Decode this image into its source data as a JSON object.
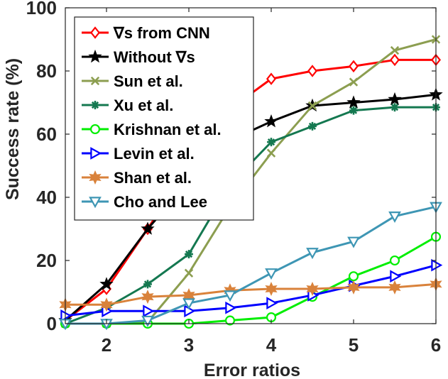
{
  "chart_data": {
    "type": "line",
    "xlabel": "Error ratios",
    "ylabel": "Success rate (%)",
    "xlim": [
      1.5,
      6
    ],
    "ylim": [
      0,
      100
    ],
    "xticks": [
      2,
      3,
      4,
      5,
      6
    ],
    "yticks": [
      0,
      20,
      40,
      60,
      80,
      100
    ],
    "grid": false,
    "legend_position": "top-left",
    "x": [
      1.5,
      2,
      2.5,
      3,
      3.5,
      4,
      4.5,
      5,
      5.5,
      6
    ],
    "series": [
      {
        "name": "∇s from CNN",
        "color": "#ff0000",
        "marker": "diamond",
        "values": [
          1,
          11,
          30,
          50,
          68,
          77.5,
          80,
          81.5,
          83.5,
          83.5
        ]
      },
      {
        "name": "Without ∇s",
        "color": "#000000",
        "marker": "star",
        "values": [
          1,
          12.5,
          30,
          45,
          58,
          64,
          69,
          70,
          71,
          72.5
        ]
      },
      {
        "name": "Sun et al.",
        "color": "#8c9e50",
        "marker": "x",
        "values": [
          0,
          0,
          0.5,
          16,
          37,
          54,
          69,
          76.5,
          86.5,
          90
        ]
      },
      {
        "name": "Xu et al.",
        "color": "#147850",
        "marker": "asterisk",
        "values": [
          0,
          5,
          12.5,
          22,
          44,
          57.5,
          62.5,
          67.5,
          68.5,
          68.5
        ]
      },
      {
        "name": "Krishnan et al.",
        "color": "#00ee00",
        "marker": "circle",
        "values": [
          0,
          0,
          0,
          0,
          1,
          2,
          8.5,
          15,
          20,
          27.5
        ]
      },
      {
        "name": "Levin et al.",
        "color": "#0000ff",
        "marker": "triangle-right",
        "values": [
          2.5,
          4,
          4,
          4,
          5,
          6.5,
          9,
          12,
          15,
          18.5
        ]
      },
      {
        "name": "Shan et al.",
        "color": "#d9823b",
        "marker": "hexagram",
        "values": [
          6,
          6,
          8.5,
          9,
          10.5,
          11,
          11,
          11.5,
          11.5,
          12.5
        ]
      },
      {
        "name": "Cho and Lee",
        "color": "#3e96b4",
        "marker": "triangle-down",
        "values": [
          0,
          0,
          1,
          6.5,
          9,
          16,
          22.5,
          26,
          34,
          37
        ]
      }
    ]
  }
}
